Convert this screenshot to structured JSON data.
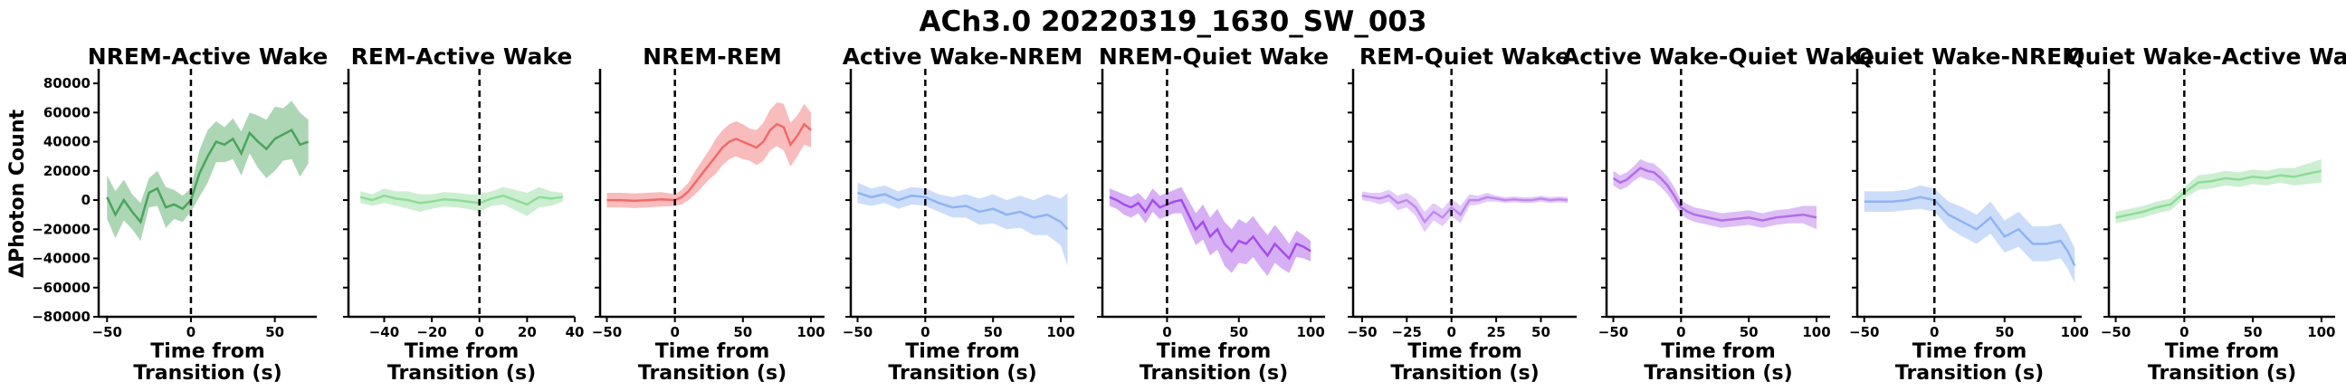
{
  "figure": {
    "suptitle": "ACh3.0 20220319_1630_SW_003",
    "ylabel": "ΔPhoton Count",
    "xlabel_line1": "Time from",
    "xlabel_line2": "Transition (s)"
  },
  "chart_data": [
    {
      "type": "line",
      "title": "NREM-Active Wake",
      "xlabel": "Time from Transition (s)",
      "ylabel": "ΔPhoton Count",
      "color": "#4aa55c",
      "xlim": [
        -55,
        75
      ],
      "ylim": [
        -80000,
        90000
      ],
      "xticks": [
        -50,
        0,
        50
      ],
      "yticks": [
        -80000,
        -60000,
        -40000,
        -20000,
        0,
        20000,
        40000,
        60000,
        80000
      ],
      "transition_line_x": 0,
      "x": [
        -50,
        -45,
        -40,
        -35,
        -30,
        -25,
        -20,
        -15,
        -10,
        -5,
        0,
        5,
        10,
        15,
        20,
        25,
        30,
        35,
        40,
        45,
        50,
        55,
        60,
        65,
        70
      ],
      "y": [
        2000,
        -10000,
        0,
        -8000,
        -15000,
        5000,
        8000,
        -5000,
        -3000,
        -6000,
        0,
        18000,
        30000,
        40000,
        38000,
        42000,
        32000,
        46000,
        40000,
        35000,
        42000,
        45000,
        48000,
        38000,
        40000
      ],
      "err": [
        15000,
        16000,
        14000,
        12000,
        13000,
        10000,
        12000,
        14000,
        10000,
        9000,
        8000,
        16000,
        18000,
        14000,
        12000,
        14000,
        15000,
        14000,
        18000,
        20000,
        22000,
        18000,
        20000,
        22000,
        15000
      ]
    },
    {
      "type": "line",
      "title": "REM-Active Wake",
      "xlabel": "Time from Transition (s)",
      "color": "#8fdc98",
      "xlim": [
        -55,
        40
      ],
      "ylim": [
        -80000,
        90000
      ],
      "xticks": [
        -40,
        -20,
        0,
        20,
        40
      ],
      "transition_line_x": 0,
      "x": [
        -50,
        -45,
        -40,
        -35,
        -30,
        -25,
        -20,
        -15,
        -10,
        -5,
        0,
        5,
        10,
        15,
        20,
        25,
        30,
        35
      ],
      "y": [
        2000,
        0,
        3000,
        1000,
        0,
        -2000,
        -1000,
        500,
        0,
        -1000,
        -2000,
        1000,
        3000,
        0,
        -3000,
        2000,
        1000,
        2000
      ],
      "err": [
        4000,
        4000,
        5000,
        5000,
        6000,
        6000,
        5000,
        5000,
        5000,
        5000,
        6000,
        5000,
        6000,
        7000,
        8000,
        7000,
        5000,
        3000
      ]
    },
    {
      "type": "line",
      "title": "NREM-REM",
      "xlabel": "Time from Transition (s)",
      "color": "#f06a6a",
      "xlim": [
        -55,
        110
      ],
      "ylim": [
        -80000,
        90000
      ],
      "xticks": [
        -50,
        0,
        50,
        100
      ],
      "transition_line_x": 0,
      "x": [
        -50,
        -40,
        -30,
        -20,
        -10,
        0,
        5,
        10,
        15,
        20,
        25,
        30,
        35,
        40,
        45,
        50,
        55,
        60,
        65,
        70,
        75,
        80,
        85,
        90,
        95,
        100
      ],
      "y": [
        0,
        0,
        -500,
        0,
        500,
        0,
        2000,
        6000,
        12000,
        18000,
        24000,
        30000,
        36000,
        40000,
        42000,
        40000,
        38000,
        36000,
        40000,
        48000,
        52000,
        50000,
        38000,
        44000,
        52000,
        48000
      ],
      "err": [
        5000,
        5000,
        5000,
        5000,
        5000,
        4000,
        5000,
        6000,
        8000,
        9000,
        10000,
        12000,
        12000,
        12000,
        12000,
        12000,
        11000,
        12000,
        13000,
        14000,
        15000,
        16000,
        15000,
        14000,
        14000,
        12000
      ]
    },
    {
      "type": "line",
      "title": "Active Wake-NREM",
      "xlabel": "Time from Transition (s)",
      "color": "#8fb4f2",
      "xlim": [
        -55,
        110
      ],
      "ylim": [
        -80000,
        90000
      ],
      "xticks": [
        -50,
        0,
        50,
        100
      ],
      "transition_line_x": 0,
      "x": [
        -50,
        -40,
        -30,
        -20,
        -10,
        0,
        10,
        20,
        30,
        40,
        50,
        60,
        70,
        80,
        90,
        100,
        105
      ],
      "y": [
        5000,
        2000,
        4000,
        0,
        3000,
        2000,
        -2000,
        -5000,
        -4000,
        -8000,
        -6000,
        -10000,
        -8000,
        -12000,
        -10000,
        -15000,
        -20000
      ],
      "err": [
        7000,
        6000,
        6000,
        6000,
        6000,
        6000,
        6000,
        7000,
        8000,
        9000,
        10000,
        10000,
        11000,
        12000,
        14000,
        16000,
        25000
      ]
    },
    {
      "type": "line",
      "title": "NREM-Quiet Wake",
      "xlabel": "Time from Transition (s)",
      "color": "#a44ee8",
      "xlim": [
        -45,
        110
      ],
      "ylim": [
        -80000,
        90000
      ],
      "xticks": [
        0,
        50,
        100
      ],
      "transition_line_x": 0,
      "x": [
        -40,
        -35,
        -30,
        -25,
        -20,
        -15,
        -10,
        -5,
        0,
        5,
        10,
        15,
        20,
        25,
        30,
        35,
        40,
        45,
        50,
        55,
        60,
        65,
        70,
        75,
        80,
        85,
        90,
        95,
        100
      ],
      "y": [
        2000,
        0,
        -3000,
        -5000,
        -2000,
        -8000,
        0,
        -5000,
        -3000,
        -1000,
        0,
        -10000,
        -20000,
        -15000,
        -25000,
        -20000,
        -30000,
        -35000,
        -28000,
        -30000,
        -25000,
        -32000,
        -38000,
        -30000,
        -35000,
        -40000,
        -30000,
        -32000,
        -35000
      ],
      "err": [
        6000,
        6000,
        7000,
        7000,
        7000,
        8000,
        8000,
        8000,
        8000,
        8000,
        9000,
        10000,
        11000,
        12000,
        13000,
        14000,
        15000,
        15000,
        15000,
        14000,
        14000,
        14000,
        14000,
        13000,
        12000,
        10000,
        9000,
        8000,
        7000
      ]
    },
    {
      "type": "line",
      "title": "REM-Quiet Wake",
      "xlabel": "Time from Transition (s)",
      "color": "#c08af0",
      "xlim": [
        -55,
        70
      ],
      "ylim": [
        -80000,
        90000
      ],
      "xticks": [
        -50,
        -25,
        0,
        25,
        50
      ],
      "transition_line_x": 0,
      "x": [
        -50,
        -45,
        -40,
        -35,
        -30,
        -25,
        -20,
        -15,
        -10,
        -5,
        0,
        5,
        10,
        15,
        20,
        25,
        30,
        35,
        40,
        45,
        50,
        55,
        60,
        65
      ],
      "y": [
        3000,
        2000,
        1000,
        3000,
        -2000,
        0,
        -5000,
        -15000,
        -8000,
        -12000,
        -5000,
        -10000,
        0,
        0,
        2000,
        1000,
        0,
        500,
        0,
        0,
        1000,
        0,
        500,
        0
      ],
      "err": [
        3000,
        3000,
        4000,
        4000,
        5000,
        5000,
        6000,
        7000,
        6000,
        6000,
        6000,
        6000,
        4000,
        3000,
        3000,
        2000,
        2000,
        2000,
        2000,
        2000,
        2000,
        2000,
        2000,
        2000
      ]
    },
    {
      "type": "line",
      "title": "Active Wake-Quiet Wake",
      "xlabel": "Time from Transition (s)",
      "color": "#b36ee8",
      "xlim": [
        -55,
        110
      ],
      "ylim": [
        -80000,
        90000
      ],
      "xticks": [
        -50,
        0,
        50,
        100
      ],
      "transition_line_x": 0,
      "x": [
        -50,
        -45,
        -40,
        -35,
        -30,
        -25,
        -20,
        -15,
        -10,
        -5,
        0,
        5,
        10,
        20,
        30,
        40,
        50,
        60,
        70,
        80,
        90,
        100
      ],
      "y": [
        15000,
        12000,
        14000,
        18000,
        22000,
        20000,
        19000,
        15000,
        10000,
        3000,
        -5000,
        -8000,
        -10000,
        -12000,
        -14000,
        -13000,
        -12000,
        -14000,
        -12000,
        -11000,
        -10000,
        -12000
      ],
      "err": [
        5000,
        5000,
        5000,
        5000,
        6000,
        6000,
        6000,
        6000,
        6000,
        6000,
        5000,
        5000,
        5000,
        5000,
        5000,
        5000,
        5000,
        5000,
        5000,
        5000,
        6000,
        8000
      ]
    },
    {
      "type": "line",
      "title": "Quiet Wake-NREM",
      "xlabel": "Time from Transition (s)",
      "color": "#8fb4f2",
      "xlim": [
        -55,
        105
      ],
      "ylim": [
        -80000,
        90000
      ],
      "xticks": [
        -50,
        0,
        50,
        100
      ],
      "transition_line_x": 0,
      "x": [
        -50,
        -40,
        -30,
        -20,
        -10,
        0,
        10,
        20,
        30,
        40,
        50,
        60,
        70,
        80,
        90,
        95,
        100
      ],
      "y": [
        -1000,
        -1000,
        -1000,
        0,
        2000,
        0,
        -10000,
        -15000,
        -20000,
        -12000,
        -25000,
        -20000,
        -30000,
        -30000,
        -28000,
        -35000,
        -45000
      ],
      "err": [
        7000,
        7000,
        7000,
        7000,
        8000,
        8000,
        9000,
        10000,
        10000,
        11000,
        11000,
        12000,
        12000,
        12000,
        12000,
        12000,
        12000
      ]
    },
    {
      "type": "line",
      "title": "Quiet Wake-Active Wake",
      "xlabel": "Time from Transition (s)",
      "color": "#8fdc98",
      "xlim": [
        -55,
        110
      ],
      "ylim": [
        -80000,
        90000
      ],
      "xticks": [
        -50,
        0,
        50,
        100
      ],
      "transition_line_x": 0,
      "x": [
        -50,
        -40,
        -30,
        -20,
        -10,
        0,
        10,
        20,
        30,
        40,
        50,
        60,
        70,
        80,
        90,
        100
      ],
      "y": [
        -12000,
        -10000,
        -8000,
        -5000,
        -3000,
        5000,
        12000,
        13000,
        15000,
        14000,
        16000,
        15000,
        17000,
        16000,
        18000,
        20000
      ],
      "err": [
        4000,
        4000,
        4000,
        4000,
        4000,
        4000,
        5000,
        5000,
        5000,
        5000,
        5000,
        5000,
        5000,
        6000,
        7000,
        8000
      ]
    }
  ]
}
